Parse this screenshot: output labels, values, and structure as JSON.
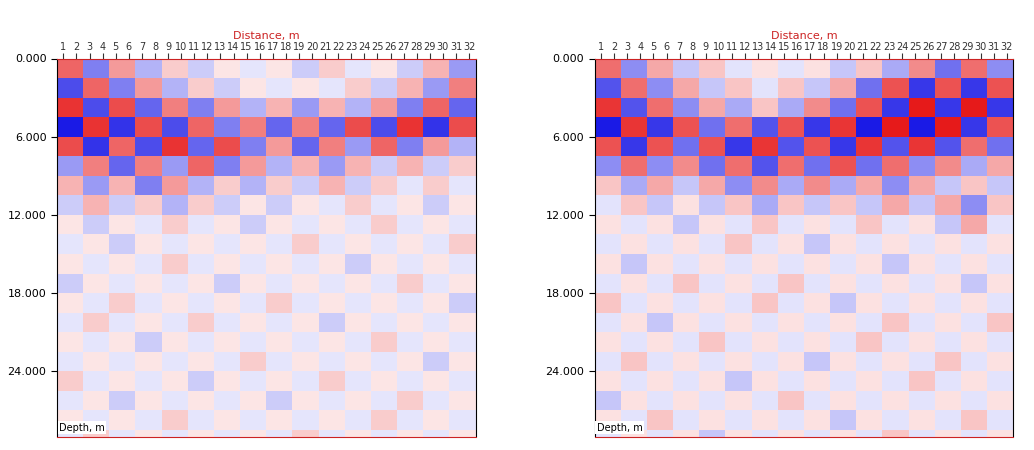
{
  "chart_data": [
    {
      "type": "heatmap",
      "title": "Distance, m",
      "ylabel": "Depth, m",
      "xlim": [
        0.5,
        32.5
      ],
      "ylim": [
        29,
        0
      ],
      "xticks": [
        1,
        2,
        3,
        4,
        5,
        6,
        7,
        8,
        9,
        10,
        11,
        12,
        13,
        14,
        15,
        16,
        17,
        18,
        19,
        20,
        21,
        22,
        23,
        24,
        25,
        26,
        27,
        28,
        29,
        30,
        31,
        32
      ],
      "yticks": [
        {
          "value": 0,
          "label": "0.000"
        },
        {
          "value": 6,
          "label": "6.000"
        },
        {
          "value": 12,
          "label": "12.000"
        },
        {
          "value": 18,
          "label": "18.000"
        },
        {
          "value": 24,
          "label": "24.000"
        }
      ],
      "x": [
        1.5,
        3.5,
        5.5,
        7.5,
        9.5,
        11.5,
        13.5,
        15.5,
        17.5,
        19.5,
        21.5,
        23.5,
        25.5,
        27.5,
        29.5,
        31.5
      ],
      "y": [
        0.75,
        2.25,
        3.75,
        5.25,
        6.75,
        8.25,
        9.75,
        11.25,
        12.75,
        14.25,
        15.75,
        17.25,
        18.75,
        20.25,
        21.75,
        23.25,
        24.75,
        26.25,
        27.75,
        29.25
      ],
      "values": [
        [
          6,
          -5,
          4,
          -3,
          2,
          -2,
          1,
          -1,
          1,
          -2,
          2,
          -1,
          1,
          -2,
          3,
          -4
        ],
        [
          -7,
          6,
          -5,
          4,
          -3,
          2,
          -2,
          1,
          -1,
          1,
          -1,
          2,
          -2,
          3,
          -4,
          5
        ],
        [
          8,
          -7,
          7,
          -6,
          5,
          -5,
          4,
          -3,
          3,
          -4,
          3,
          -3,
          4,
          -5,
          6,
          -6
        ],
        [
          -9,
          8,
          -8,
          7,
          -7,
          6,
          -5,
          5,
          -6,
          5,
          -6,
          7,
          -7,
          8,
          -8,
          7
        ],
        [
          7,
          -8,
          6,
          -7,
          8,
          -6,
          7,
          -5,
          4,
          -6,
          5,
          -4,
          6,
          -5,
          4,
          -3
        ],
        [
          -4,
          5,
          -6,
          5,
          -4,
          6,
          -5,
          4,
          -3,
          3,
          -4,
          3,
          -2,
          3,
          -2,
          2
        ],
        [
          3,
          -4,
          3,
          -5,
          4,
          -3,
          2,
          -3,
          2,
          -2,
          3,
          -2,
          2,
          -1,
          2,
          -1
        ],
        [
          -2,
          3,
          -2,
          2,
          -3,
          2,
          -2,
          1,
          -2,
          1,
          -1,
          2,
          -1,
          1,
          -2,
          1
        ],
        [
          1,
          -2,
          1,
          -1,
          2,
          -1,
          1,
          -2,
          1,
          -1,
          1,
          -1,
          2,
          -1,
          1,
          -1
        ],
        [
          -1,
          1,
          -2,
          1,
          -1,
          1,
          -1,
          1,
          -1,
          2,
          -1,
          1,
          -1,
          1,
          -1,
          2
        ],
        [
          1,
          -1,
          1,
          -1,
          2,
          -1,
          1,
          -1,
          1,
          -1,
          1,
          -2,
          1,
          -1,
          1,
          -1
        ],
        [
          -2,
          1,
          -1,
          1,
          -1,
          1,
          -2,
          1,
          -1,
          1,
          -1,
          1,
          -1,
          2,
          -1,
          1
        ],
        [
          1,
          -1,
          2,
          -1,
          1,
          -1,
          1,
          -1,
          2,
          -1,
          1,
          -1,
          1,
          -1,
          1,
          -2
        ],
        [
          -1,
          2,
          -1,
          1,
          -1,
          2,
          -1,
          1,
          -1,
          1,
          -2,
          1,
          -1,
          1,
          -1,
          1
        ],
        [
          1,
          -1,
          1,
          -2,
          1,
          -1,
          1,
          -1,
          1,
          -1,
          1,
          -1,
          2,
          -1,
          1,
          -1
        ],
        [
          -1,
          1,
          -1,
          1,
          -1,
          1,
          -1,
          2,
          -1,
          1,
          -1,
          1,
          -1,
          1,
          -2,
          1
        ],
        [
          2,
          -1,
          1,
          -1,
          1,
          -2,
          1,
          -1,
          1,
          -1,
          2,
          -1,
          1,
          -1,
          1,
          -1
        ],
        [
          -1,
          1,
          -2,
          1,
          -1,
          1,
          -1,
          1,
          -2,
          1,
          -1,
          1,
          -1,
          2,
          -1,
          1
        ],
        [
          1,
          -1,
          1,
          -1,
          2,
          -1,
          1,
          -1,
          1,
          -1,
          1,
          -1,
          2,
          -1,
          1,
          -1
        ],
        [
          -1,
          2,
          -1,
          1,
          -1,
          1,
          -1,
          1,
          -1,
          2,
          -1,
          1,
          -1,
          1,
          -1,
          1
        ]
      ]
    },
    {
      "type": "heatmap",
      "title": "Distance, m",
      "ylabel": "Depth, m",
      "xlim": [
        0.5,
        32.5
      ],
      "ylim": [
        29,
        0
      ],
      "xticks": [
        1,
        2,
        3,
        4,
        5,
        6,
        7,
        8,
        9,
        10,
        11,
        12,
        13,
        14,
        15,
        16,
        17,
        18,
        19,
        20,
        21,
        22,
        23,
        24,
        25,
        26,
        27,
        28,
        29,
        30,
        31,
        32
      ],
      "yticks": [
        {
          "value": 0,
          "label": "0.000"
        },
        {
          "value": 6,
          "label": "6.000"
        },
        {
          "value": 12,
          "label": "12.000"
        },
        {
          "value": 18,
          "label": "18.000"
        },
        {
          "value": 24,
          "label": "24.000"
        }
      ],
      "x": [
        1.5,
        3.5,
        5.5,
        7.5,
        9.5,
        11.5,
        13.5,
        15.5,
        17.5,
        19.5,
        21.5,
        23.5,
        25.5,
        27.5,
        29.5,
        31.5
      ],
      "y": [
        0.75,
        2.25,
        3.75,
        5.25,
        6.75,
        8.25,
        9.75,
        11.25,
        12.75,
        14.25,
        15.75,
        17.25,
        18.75,
        20.25,
        21.75,
        23.25,
        24.75,
        26.25,
        27.75,
        29.25
      ],
      "values": [
        [
          5,
          -4,
          3,
          -2,
          2,
          -1,
          1,
          -1,
          1,
          -2,
          2,
          -3,
          4,
          -5,
          5,
          -4
        ],
        [
          -6,
          5,
          -4,
          3,
          -2,
          2,
          -1,
          2,
          -2,
          3,
          -5,
          6,
          -7,
          6,
          -7,
          6
        ],
        [
          7,
          -6,
          5,
          -4,
          3,
          -3,
          2,
          -3,
          4,
          -5,
          6,
          -7,
          8,
          -7,
          8,
          -7
        ],
        [
          -8,
          7,
          -7,
          6,
          -5,
          5,
          -6,
          6,
          -7,
          7,
          -8,
          8,
          -8,
          8,
          -7,
          6
        ],
        [
          6,
          -7,
          6,
          -5,
          6,
          -7,
          7,
          -6,
          6,
          -7,
          7,
          -6,
          7,
          -6,
          5,
          -5
        ],
        [
          -4,
          5,
          -4,
          4,
          -5,
          5,
          -6,
          5,
          -5,
          6,
          -5,
          5,
          -4,
          4,
          -3,
          3
        ],
        [
          2,
          -3,
          3,
          -2,
          3,
          -4,
          4,
          -3,
          4,
          -3,
          3,
          -4,
          3,
          -2,
          2,
          -2
        ],
        [
          -1,
          2,
          -2,
          1,
          -2,
          2,
          -3,
          2,
          -2,
          2,
          -2,
          3,
          -2,
          3,
          -4,
          2
        ],
        [
          1,
          -1,
          1,
          -2,
          1,
          -1,
          2,
          -1,
          1,
          -1,
          2,
          -1,
          1,
          -2,
          3,
          -1
        ],
        [
          -1,
          1,
          -1,
          1,
          -1,
          2,
          -1,
          1,
          -2,
          1,
          -1,
          1,
          -1,
          1,
          -1,
          1
        ],
        [
          1,
          -2,
          1,
          -1,
          1,
          -1,
          1,
          -1,
          1,
          -1,
          1,
          -2,
          1,
          -1,
          1,
          -1
        ],
        [
          -1,
          1,
          -1,
          2,
          -1,
          1,
          -1,
          2,
          -1,
          1,
          -1,
          1,
          -1,
          1,
          -2,
          1
        ],
        [
          2,
          -1,
          1,
          -1,
          1,
          -1,
          2,
          -1,
          1,
          -2,
          1,
          -1,
          1,
          -1,
          1,
          -1
        ],
        [
          -1,
          1,
          -2,
          1,
          -1,
          1,
          -1,
          1,
          -1,
          1,
          -1,
          2,
          -1,
          1,
          -1,
          2
        ],
        [
          1,
          -1,
          1,
          -1,
          2,
          -1,
          1,
          -1,
          1,
          -1,
          2,
          -1,
          1,
          -1,
          1,
          -1
        ],
        [
          -1,
          2,
          -1,
          1,
          -1,
          1,
          -1,
          1,
          -2,
          1,
          -1,
          1,
          -1,
          2,
          -1,
          1
        ],
        [
          1,
          -1,
          1,
          -1,
          1,
          -2,
          1,
          -1,
          1,
          -1,
          1,
          -1,
          2,
          -1,
          1,
          -1
        ],
        [
          -2,
          1,
          -1,
          1,
          -1,
          1,
          -1,
          2,
          -1,
          1,
          -1,
          1,
          -1,
          1,
          -1,
          1
        ],
        [
          1,
          -1,
          2,
          -1,
          1,
          -1,
          1,
          -1,
          1,
          -2,
          1,
          -1,
          1,
          -1,
          2,
          -1
        ],
        [
          -1,
          1,
          -1,
          1,
          -2,
          1,
          -1,
          1,
          -1,
          1,
          -1,
          2,
          -1,
          1,
          -1,
          1
        ]
      ]
    }
  ]
}
